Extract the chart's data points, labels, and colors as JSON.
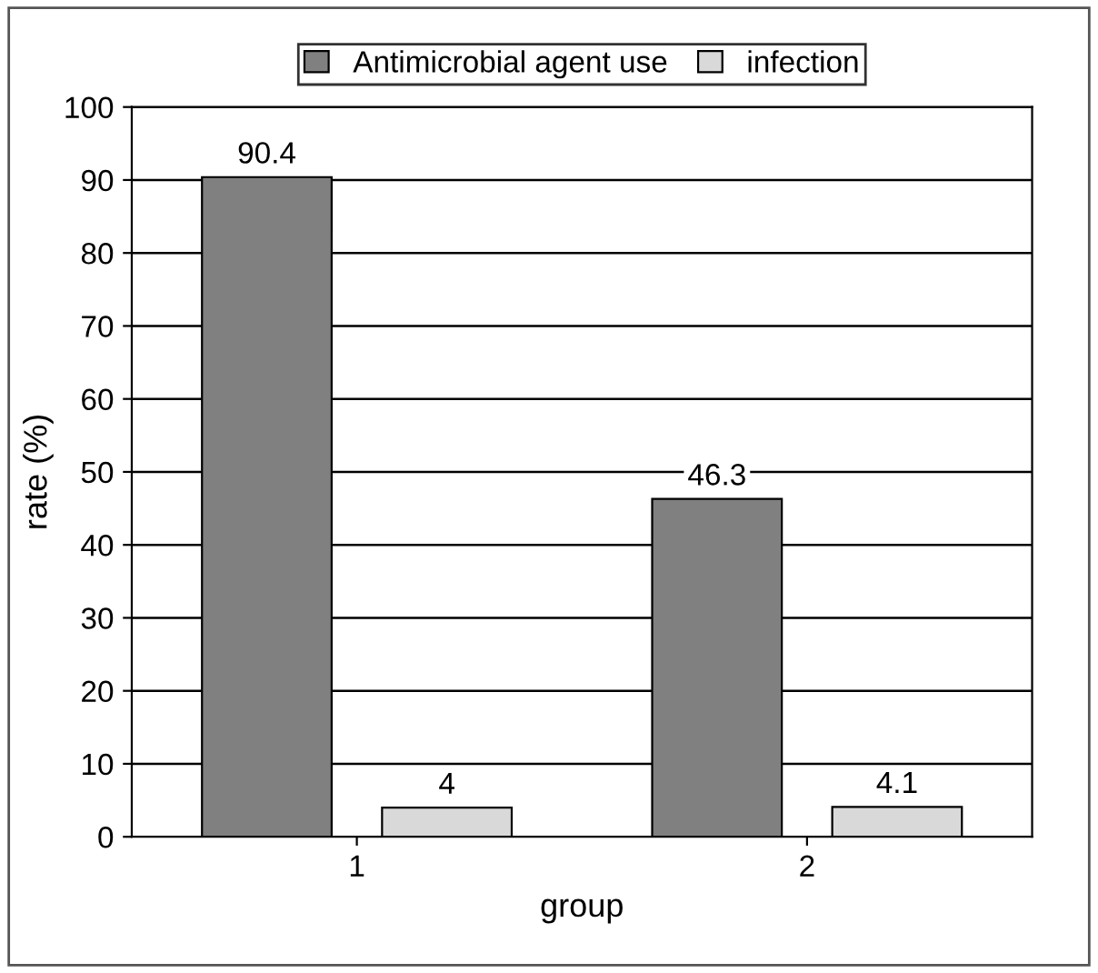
{
  "chart_data": {
    "type": "bar",
    "xlabel": "group",
    "ylabel": "rate (%)",
    "categories": [
      "1",
      "2"
    ],
    "series": [
      {
        "name": "Antimicrobial agent use",
        "color": "#808080",
        "values": [
          90.4,
          46.3
        ]
      },
      {
        "name": "infection",
        "color": "#d9d9d9",
        "values": [
          4,
          4.1
        ]
      }
    ],
    "ylim": [
      0,
      100
    ],
    "yticks": [
      0,
      10,
      20,
      30,
      40,
      50,
      60,
      70,
      80,
      90,
      100
    ],
    "grid": "y",
    "legend": "top",
    "data_labels": true
  }
}
